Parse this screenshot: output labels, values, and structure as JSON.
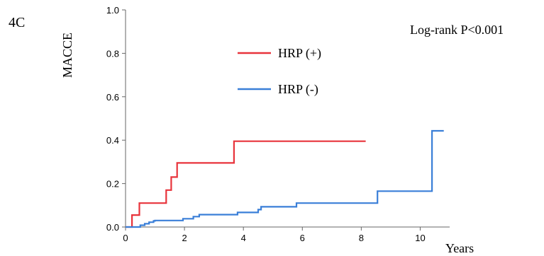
{
  "panel_label": "4C",
  "annotation": "Log-rank P<0.001",
  "chart_data": {
    "type": "line",
    "step": true,
    "title": "",
    "xlabel": "Years",
    "ylabel": "MACCE",
    "xlim": [
      0,
      11
    ],
    "ylim": [
      0,
      1.0
    ],
    "x_ticks": [
      0,
      2,
      4,
      6,
      8,
      10
    ],
    "y_ticks": [
      0.0,
      0.2,
      0.4,
      0.6,
      0.8,
      1.0
    ],
    "x_tick_labels": [
      "0",
      "2",
      "4",
      "6",
      "8",
      "10"
    ],
    "y_tick_labels": [
      "0.0",
      "0.2",
      "0.4",
      "0.6",
      "0.8",
      "1.0"
    ],
    "grid": false,
    "legend_placement": "upper-center",
    "series": [
      {
        "name": "HRP (+)",
        "color": "#e8333b",
        "x": [
          0,
          0.22,
          0.22,
          0.47,
          0.47,
          1.38,
          1.38,
          1.55,
          1.55,
          1.75,
          1.75,
          3.68,
          3.68,
          8.15
        ],
        "y": [
          0,
          0,
          0.055,
          0.055,
          0.11,
          0.11,
          0.17,
          0.17,
          0.23,
          0.23,
          0.295,
          0.295,
          0.395,
          0.395
        ]
      },
      {
        "name": "HRP (-)",
        "color": "#3a7fd8",
        "x": [
          0,
          0.5,
          0.5,
          0.65,
          0.65,
          0.8,
          0.8,
          0.95,
          0.95,
          1.0,
          1.0,
          1.95,
          1.95,
          2.3,
          2.3,
          2.5,
          2.5,
          3.8,
          3.8,
          4.5,
          4.5,
          4.6,
          4.6,
          5.8,
          5.8,
          8.55,
          8.55,
          10.4,
          10.4,
          10.8
        ],
        "y": [
          0,
          0,
          0.008,
          0.008,
          0.015,
          0.015,
          0.022,
          0.022,
          0.028,
          0.028,
          0.03,
          0.03,
          0.038,
          0.038,
          0.048,
          0.048,
          0.057,
          0.057,
          0.067,
          0.067,
          0.08,
          0.08,
          0.093,
          0.093,
          0.11,
          0.11,
          0.165,
          0.165,
          0.443,
          0.443
        ]
      }
    ]
  }
}
